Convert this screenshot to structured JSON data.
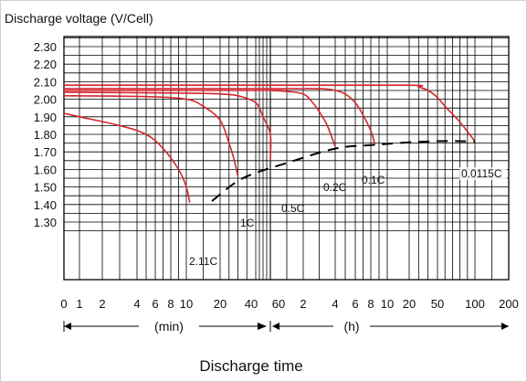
{
  "chart_data": {
    "type": "line",
    "title": "Discharge voltage (V/Cell)",
    "xlabel": "Discharge time",
    "ylabel": "Discharge voltage (V/Cell)",
    "ylim": [
      1.23,
      2.38
    ],
    "y_ticks": [
      "2.30",
      "2.20",
      "2.10",
      "2.00",
      "1.90",
      "1.80",
      "1.70",
      "1.60",
      "1.50",
      "1.40",
      "1.30"
    ],
    "x_ticks_min": [
      "0",
      "1",
      "2",
      "4",
      "6",
      "8",
      "10",
      "20",
      "40"
    ],
    "x_ticks_h": [
      "60",
      "2",
      "4",
      "6",
      "8",
      "10",
      "20",
      "50",
      "100",
      "200"
    ],
    "units": {
      "min": "(min)",
      "h": "(h)"
    },
    "grid": true,
    "series": [
      {
        "name": "2.11C",
        "x_min": [
          0,
          1,
          3,
          5,
          7,
          9,
          10,
          11
        ],
        "y": [
          1.92,
          1.9,
          1.85,
          1.8,
          1.72,
          1.6,
          1.5,
          1.41
        ]
      },
      {
        "name": "1C",
        "x_min": [
          0,
          5,
          10,
          15,
          20,
          25,
          28,
          30
        ],
        "y": [
          2.02,
          2.015,
          2.0,
          1.96,
          1.88,
          1.75,
          1.65,
          1.56
        ]
      },
      {
        "name": "0.5C",
        "x_min": [
          0,
          10,
          20,
          30,
          40,
          50,
          60,
          70
        ],
        "y": [
          2.04,
          2.035,
          2.03,
          2.02,
          1.98,
          1.9,
          1.8,
          1.65
        ]
      },
      {
        "name": "0.2C",
        "x_h": [
          0.1,
          1,
          1.5,
          2,
          2.5,
          3,
          3.5,
          4
        ],
        "y": [
          2.05,
          2.05,
          2.045,
          2.03,
          1.99,
          1.93,
          1.85,
          1.73
        ]
      },
      {
        "name": "0.1C",
        "x_h": [
          0.1,
          3,
          4,
          5,
          6,
          7,
          8,
          8.5
        ],
        "y": [
          2.06,
          2.06,
          2.05,
          2.03,
          1.98,
          1.91,
          1.82,
          1.74
        ]
      },
      {
        "name": "0.0115C",
        "x_h": [
          0.1,
          20,
          30,
          40,
          50,
          60,
          80,
          100
        ],
        "y": [
          2.08,
          2.08,
          2.07,
          2.05,
          2.01,
          1.96,
          1.87,
          1.76
        ]
      }
    ],
    "cutoff_voltage": {
      "x": [
        "11 min",
        "30 min",
        "70 min",
        "4 h",
        "8.5 h",
        "100 h"
      ],
      "y": [
        1.41,
        1.56,
        1.65,
        1.73,
        1.74,
        1.76
      ]
    },
    "curve_color": "#d3262c"
  }
}
